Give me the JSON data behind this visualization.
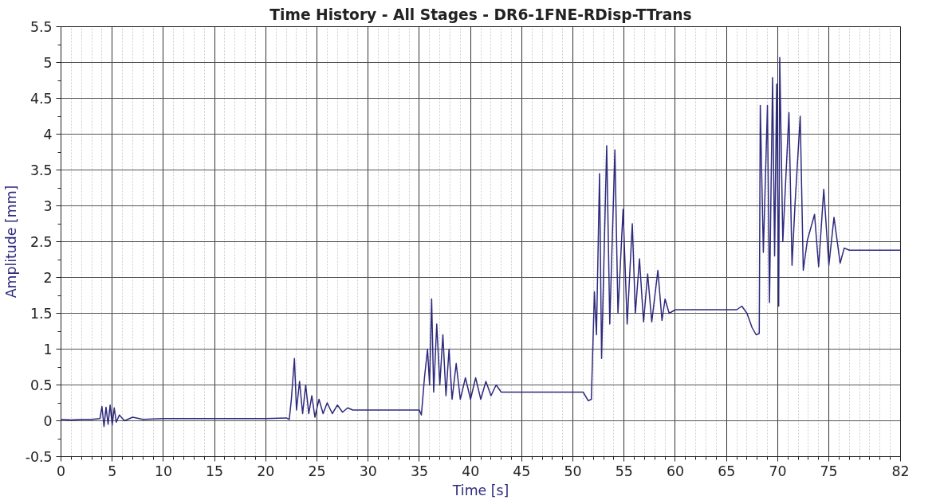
{
  "chart_data": {
    "type": "line",
    "title": "Time History - All Stages - DR6-1FNE-RDisp-TTrans",
    "xlabel": "Time [s]",
    "ylabel": "Amplitude [mm]",
    "xlim": [
      0,
      82
    ],
    "xticks": [
      0,
      5,
      10,
      15,
      20,
      25,
      30,
      35,
      40,
      45,
      50,
      55,
      60,
      65,
      70,
      75,
      82
    ],
    "ylim": [
      -0.5,
      5.5
    ],
    "yticks": [
      -0.5,
      0,
      0.5,
      1,
      1.5,
      2,
      2.5,
      3,
      3.5,
      4,
      4.5,
      5,
      5.5
    ],
    "grid": true,
    "marker": "none",
    "line_style": "solid",
    "series": [
      {
        "color": "#2e2a7e",
        "x": [
          0,
          1,
          2,
          3,
          3.8,
          4.0,
          4.2,
          4.4,
          4.6,
          4.8,
          5.0,
          5.2,
          5.4,
          5.7,
          6.2,
          7,
          8,
          10,
          15,
          20,
          22.0,
          22.3,
          22.5,
          22.8,
          23.0,
          23.3,
          23.6,
          23.9,
          24.2,
          24.5,
          24.8,
          25.2,
          25.6,
          26.0,
          26.5,
          27.0,
          27.5,
          28.0,
          28.5,
          30,
          34.5,
          35.0,
          35.2,
          35.5,
          35.8,
          36.0,
          36.2,
          36.4,
          36.7,
          37.0,
          37.3,
          37.6,
          37.9,
          38.2,
          38.6,
          39.0,
          39.5,
          40.0,
          40.5,
          41.0,
          41.5,
          42.0,
          42.5,
          43.0,
          45,
          51.0,
          51.5,
          51.8,
          52.1,
          52.3,
          52.6,
          52.8,
          53.3,
          53.6,
          54.1,
          54.4,
          54.9,
          55.3,
          55.8,
          56.1,
          56.5,
          56.9,
          57.3,
          57.7,
          58.3,
          58.7,
          59.0,
          59.4,
          60.0,
          62,
          66.0,
          66.5,
          67.0,
          67.5,
          67.9,
          68.2,
          68.3,
          68.6,
          69.0,
          69.2,
          69.5,
          69.7,
          69.9,
          70.1,
          70.2,
          70.5,
          71.1,
          71.4,
          71.7,
          72.2,
          72.5,
          72.9,
          73.6,
          74.0,
          74.5,
          75.0,
          75.5,
          76.1,
          76.5,
          77.0,
          78,
          82
        ],
        "values": [
          0.02,
          0.01,
          0.02,
          0.02,
          0.03,
          0.2,
          -0.08,
          0.19,
          -0.05,
          0.22,
          -0.06,
          0.18,
          -0.02,
          0.08,
          0.0,
          0.05,
          0.02,
          0.03,
          0.03,
          0.03,
          0.04,
          0.02,
          0.3,
          0.87,
          0.15,
          0.55,
          0.1,
          0.5,
          0.1,
          0.35,
          0.05,
          0.3,
          0.1,
          0.25,
          0.1,
          0.22,
          0.12,
          0.18,
          0.15,
          0.15,
          0.15,
          0.15,
          0.08,
          0.6,
          1.0,
          0.5,
          1.7,
          0.4,
          1.35,
          0.5,
          1.2,
          0.35,
          1.0,
          0.3,
          0.8,
          0.3,
          0.6,
          0.3,
          0.6,
          0.3,
          0.55,
          0.35,
          0.5,
          0.4,
          0.4,
          0.4,
          0.28,
          0.3,
          1.8,
          1.2,
          3.45,
          0.87,
          3.84,
          1.35,
          3.78,
          1.5,
          2.95,
          1.35,
          2.75,
          1.5,
          2.26,
          1.38,
          2.05,
          1.38,
          2.1,
          1.4,
          1.7,
          1.5,
          1.55,
          1.55,
          1.55,
          1.6,
          1.5,
          1.3,
          1.2,
          1.22,
          4.4,
          2.35,
          4.4,
          1.65,
          4.79,
          2.3,
          4.7,
          1.6,
          5.07,
          2.5,
          4.3,
          2.17,
          3.04,
          4.25,
          2.1,
          2.52,
          2.88,
          2.15,
          3.23,
          2.17,
          2.84,
          2.2,
          2.41,
          2.38,
          2.38,
          2.38
        ]
      }
    ]
  }
}
